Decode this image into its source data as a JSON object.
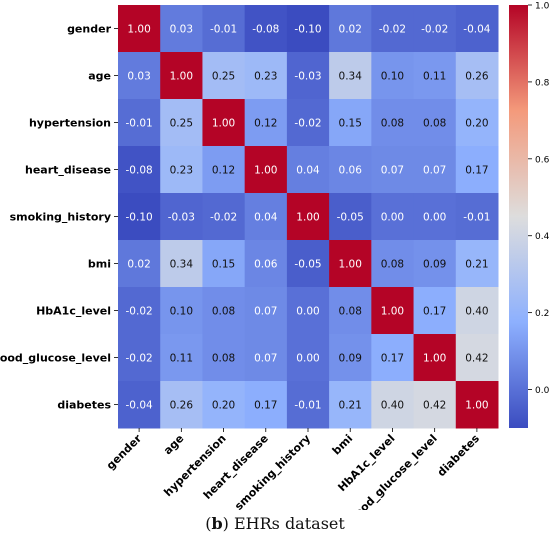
{
  "chart_data": {
    "type": "heatmap",
    "rows": [
      "gender",
      "age",
      "hypertension",
      "heart_disease",
      "smoking_history",
      "bmi",
      "HbA1c_level",
      "blood_glucose_level",
      "diabetes"
    ],
    "cols": [
      "gender",
      "age",
      "hypertension",
      "heart_disease",
      "smoking_history",
      "bmi",
      "HbA1c_level",
      "blood_glucose_level",
      "diabetes"
    ],
    "values": [
      [
        1.0,
        0.03,
        -0.01,
        -0.08,
        -0.1,
        0.02,
        -0.02,
        -0.02,
        -0.04
      ],
      [
        0.03,
        1.0,
        0.25,
        0.23,
        -0.03,
        0.34,
        0.1,
        0.11,
        0.26
      ],
      [
        -0.01,
        0.25,
        1.0,
        0.12,
        -0.02,
        0.15,
        0.08,
        0.08,
        0.2
      ],
      [
        -0.08,
        0.23,
        0.12,
        1.0,
        0.04,
        0.06,
        0.07,
        0.07,
        0.17
      ],
      [
        -0.1,
        -0.03,
        -0.02,
        0.04,
        1.0,
        -0.05,
        -0.0,
        -0.0,
        -0.01
      ],
      [
        0.02,
        0.34,
        0.15,
        0.06,
        -0.05,
        1.0,
        0.08,
        0.09,
        0.21
      ],
      [
        -0.02,
        0.1,
        0.08,
        0.07,
        -0.0,
        0.08,
        1.0,
        0.17,
        0.4
      ],
      [
        -0.02,
        0.11,
        0.08,
        0.07,
        -0.0,
        0.09,
        0.17,
        1.0,
        0.42
      ],
      [
        -0.04,
        0.26,
        0.2,
        0.17,
        -0.01,
        0.21,
        0.4,
        0.42,
        1.0
      ]
    ],
    "colormap": "coolwarm",
    "vmin": -0.1,
    "vmax": 1.0,
    "colorbar_ticks": [
      0.0,
      0.2,
      0.4,
      0.6,
      0.8,
      1.0
    ],
    "colorbar_tick_labels": [
      "0.0",
      "0.2",
      "0.4",
      "0.6",
      "0.8",
      "1.0"
    ]
  },
  "caption": {
    "label": "b",
    "text": " EHRs dataset"
  },
  "colors": {
    "low": "#3b4cc0",
    "mid": "#dddddd",
    "high": "#b40426"
  }
}
